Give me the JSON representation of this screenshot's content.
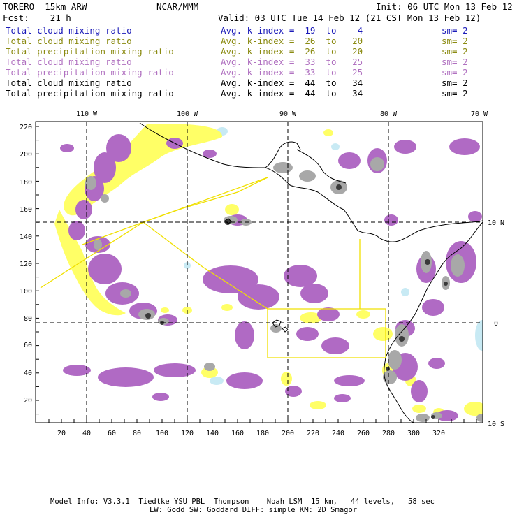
{
  "header": {
    "title_left": "TORERO  15km ARW",
    "title_center": "NCAR/MMM",
    "init": "Init: 06 UTC Mon 13 Feb 12",
    "fcst": "Fcst:    21 h",
    "valid": "Valid: 03 UTC Tue 14 Feb 12 (21 CST Mon 13 Feb 12)"
  },
  "legend_rows": [
    {
      "field": "Total cloud mixing ratio",
      "index": "Avg. k-index =  19  to    4",
      "sm": "sm= 2",
      "color": "#1a1ab8"
    },
    {
      "field": "Total cloud mixing ratio",
      "index": "Avg. k-index =  26  to   20",
      "sm": "sm= 2",
      "color": "#8a8a10"
    },
    {
      "field": "Total precipitation mixing ratio",
      "index": "Avg. k-index =  26  to   20",
      "sm": "sm= 2",
      "color": "#8a8a10"
    },
    {
      "field": "Total cloud mixing ratio",
      "index": "Avg. k-index =  33  to   25",
      "sm": "sm= 2",
      "color": "#b070c0"
    },
    {
      "field": "Total precipitation mixing ratio",
      "index": "Avg. k-index =  33  to   25",
      "sm": "sm= 2",
      "color": "#b070c0"
    },
    {
      "field": "Total cloud mixing ratio",
      "index": "Avg. k-index =  44  to   34",
      "sm": "sm= 2",
      "color": "#000000"
    },
    {
      "field": "Total precipitation mixing ratio",
      "index": "Avg. k-index =  44  to   34",
      "sm": "sm= 2",
      "color": "#000000"
    }
  ],
  "map": {
    "lon_labels": [
      "110 W",
      "100 W",
      "90 W",
      "80 W",
      "70 W"
    ],
    "lat_labels": [
      "10 N",
      "0",
      "10 S"
    ],
    "x_ticks": [
      "20",
      "40",
      "60",
      "80",
      "100",
      "120",
      "140",
      "160",
      "180",
      "200",
      "220",
      "240",
      "260",
      "280",
      "300",
      "320"
    ],
    "y_ticks": [
      "220",
      "200",
      "180",
      "160",
      "140",
      "120",
      "100",
      "80",
      "60",
      "40",
      "20"
    ],
    "colors": {
      "purple": "#b06ac4",
      "yellow": "#ffff66",
      "gray": "#a8a8a8",
      "dark": "#3a3a3a",
      "blue": "#c8eaf4",
      "domain_lines": "#f0e000",
      "coast": "#000000"
    }
  },
  "footer": {
    "line1": "Model Info: V3.3.1  Tiedtke YSU PBL  Thompson    Noah LSM  15 km,   44 levels,   58 sec",
    "line2": "LW: Godd SW: Goddard DIFF: simple KM: 2D Smagor"
  }
}
